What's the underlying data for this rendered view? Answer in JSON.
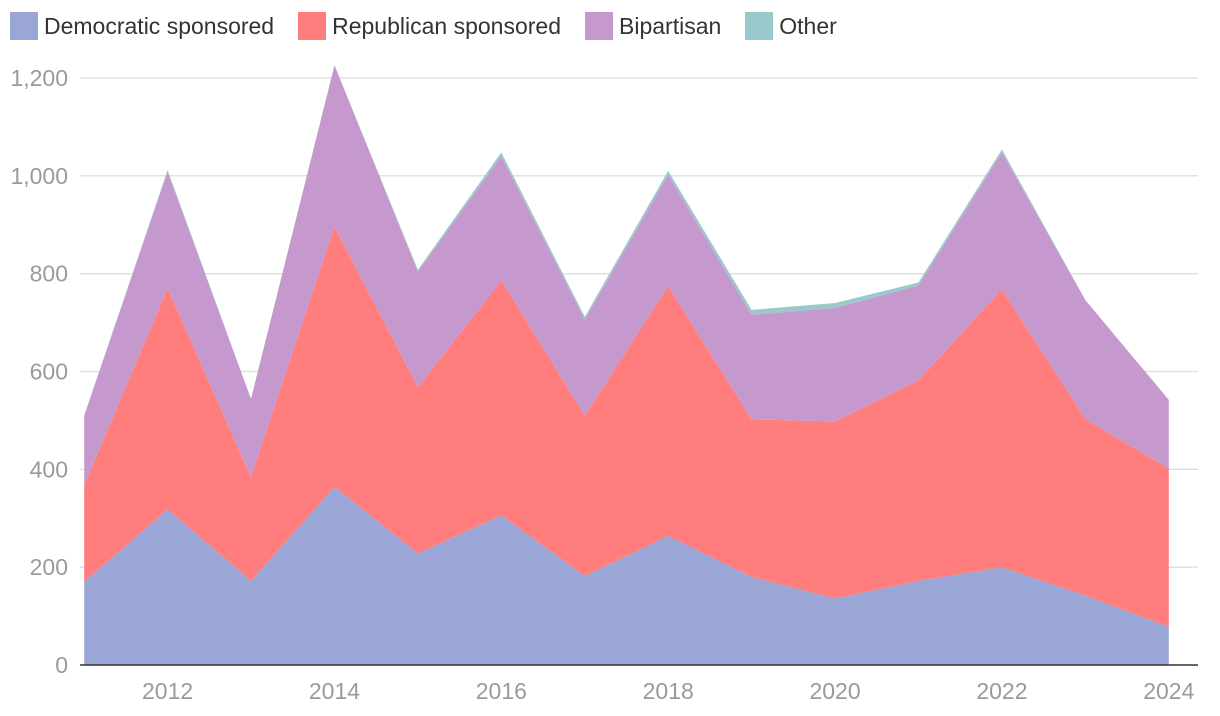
{
  "chart_data": {
    "type": "area",
    "stacked": true,
    "x": [
      2011,
      2012,
      2013,
      2014,
      2015,
      2016,
      2017,
      2018,
      2019,
      2020,
      2021,
      2022,
      2023,
      2024
    ],
    "series": [
      {
        "name": "Democratic sponsored",
        "color": "#99a6d6",
        "values": [
          170,
          318,
          172,
          364,
          228,
          306,
          182,
          264,
          180,
          136,
          172,
          200,
          142,
          78
        ]
      },
      {
        "name": "Republican sponsored",
        "color": "#ff7d7d",
        "values": [
          198,
          452,
          212,
          532,
          340,
          480,
          328,
          510,
          322,
          362,
          410,
          568,
          360,
          324
        ]
      },
      {
        "name": "Bipartisan",
        "color": "#c699ce",
        "values": [
          142,
          238,
          160,
          330,
          236,
          254,
          196,
          228,
          214,
          232,
          194,
          280,
          244,
          140
        ]
      },
      {
        "name": "Other",
        "color": "#9ac9cc",
        "values": [
          0,
          4,
          0,
          0,
          4,
          8,
          6,
          8,
          10,
          10,
          6,
          6,
          0,
          0
        ]
      }
    ],
    "x_ticks": [
      "2012",
      "2014",
      "2016",
      "2018",
      "2020",
      "2022",
      "2024"
    ],
    "y_ticks": [
      "0",
      "200",
      "400",
      "600",
      "800",
      "1,000",
      "1,200"
    ],
    "ylim": [
      0,
      1200
    ],
    "xlabel": "",
    "ylabel": "",
    "grid": true,
    "legend_position": "top-left"
  }
}
